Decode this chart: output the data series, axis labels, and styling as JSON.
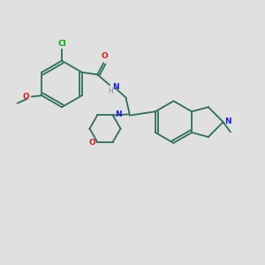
{
  "background_color": "#e0e0e0",
  "bond_color": "#2d6e5e",
  "n_color": "#2020cc",
  "o_color": "#cc2020",
  "cl_color": "#00aa00",
  "h_color": "#888888",
  "line_width": 1.3,
  "figsize": [
    3.0,
    3.0
  ],
  "dpi": 100,
  "xlim": [
    0,
    12
  ],
  "ylim": [
    0,
    12
  ]
}
